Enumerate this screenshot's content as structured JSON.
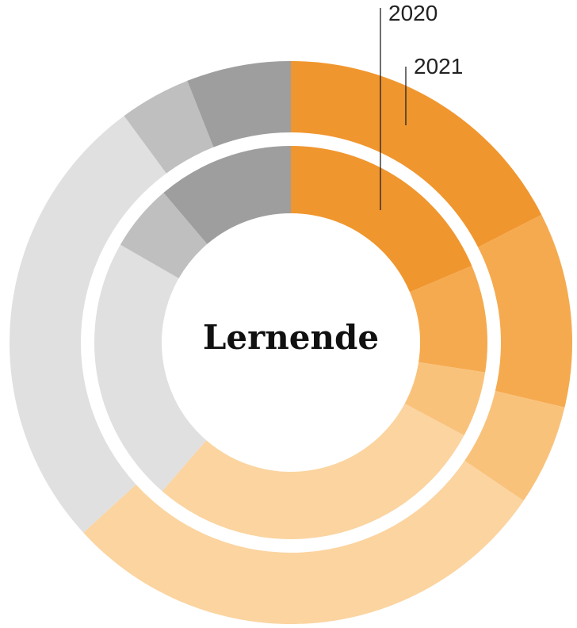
{
  "chart_data": {
    "type": "donut",
    "center_label": "Lernende",
    "colors": [
      "#f0962e",
      "#f5aa4f",
      "#f9c27b",
      "#fbd4a0",
      "#e0e0e0",
      "#bfbfbf",
      "#9e9e9e"
    ],
    "series": [
      {
        "name": "2020",
        "values": [
          18.6,
          8.8,
          5.4,
          28.5,
          21.9,
          5.5,
          11.2
        ]
      },
      {
        "name": "2021",
        "values": [
          17.5,
          11.2,
          5.8,
          28.7,
          26.7,
          4.1,
          6.0
        ]
      }
    ]
  }
}
